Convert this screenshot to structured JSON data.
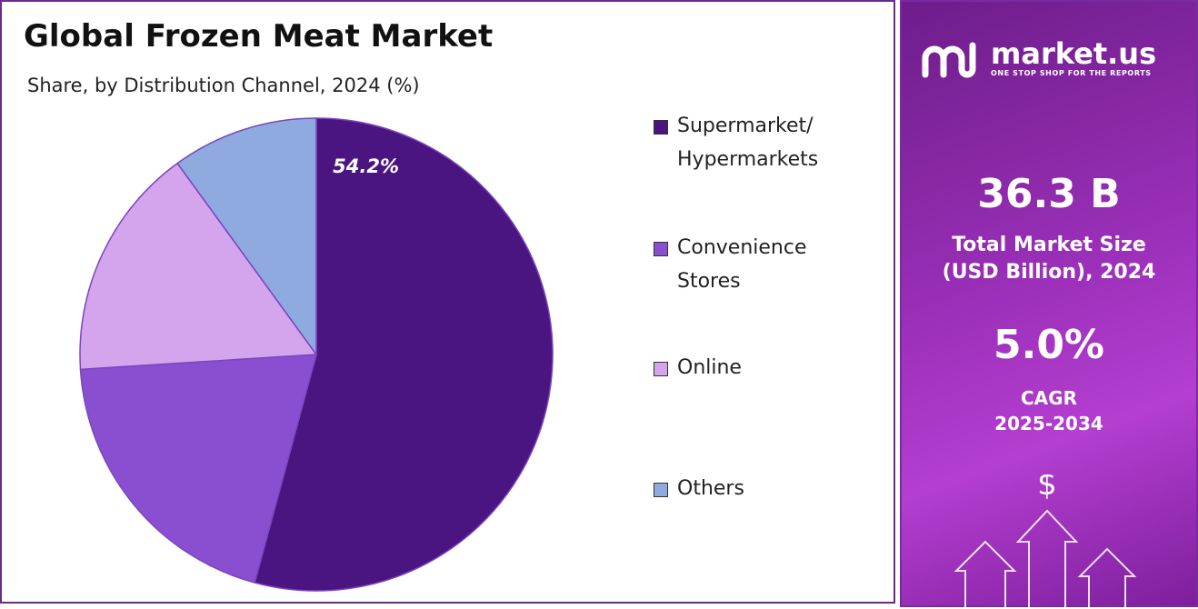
{
  "chart_data": {
    "type": "pie",
    "title": "Global Frozen Meat Market",
    "subtitle": "Share, by Distribution Channel, 2024 (%)",
    "categories": [
      "Supermarket/ Hypermarkets",
      "Convenience Stores",
      "Online",
      "Others"
    ],
    "values": [
      54.2,
      19.8,
      16.0,
      10.0
    ],
    "value_labels": [
      "54.2%",
      null,
      null,
      null
    ],
    "colors": [
      "#4b1581",
      "#8a4fd0",
      "#d4a5ec",
      "#8eaadf"
    ]
  },
  "sidebar": {
    "brand": "market.us",
    "tagline": "ONE STOP SHOP FOR THE REPORTS",
    "market_size": "36.3 B",
    "market_size_label": "Total Market Size (USD Billion), 2024",
    "cagr": "5.0%",
    "cagr_label": "CAGR",
    "cagr_period": "2025-2034"
  }
}
